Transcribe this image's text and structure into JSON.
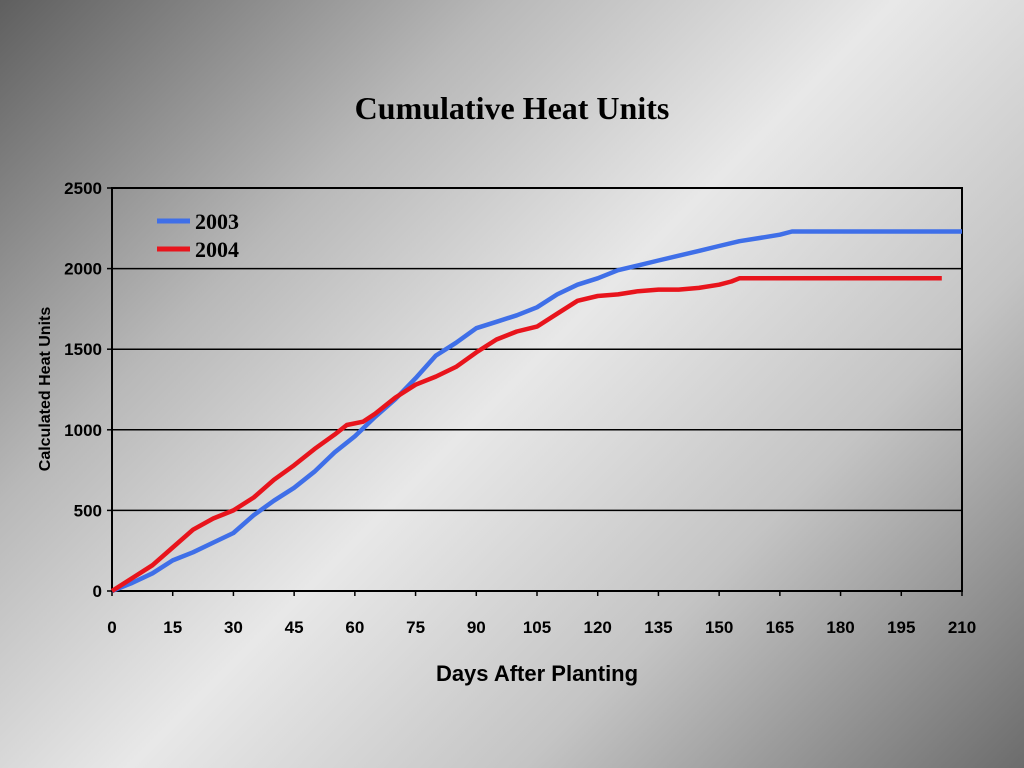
{
  "chart_data": {
    "type": "line",
    "title": "Cumulative Heat Units",
    "xlabel": "Days After Planting",
    "ylabel": "Calculated Heat Units",
    "xlim": [
      0,
      210
    ],
    "ylim": [
      0,
      2500
    ],
    "xticks": [
      0,
      15,
      30,
      45,
      60,
      75,
      90,
      105,
      120,
      135,
      150,
      165,
      180,
      195,
      210
    ],
    "yticks": [
      0,
      500,
      1000,
      1500,
      2000,
      2500
    ],
    "grid": "horizontal",
    "legend": "top-left",
    "series": [
      {
        "name": "2003",
        "color": "#3f6fe8",
        "x": [
          0,
          5,
          10,
          15,
          20,
          25,
          30,
          35,
          40,
          45,
          50,
          55,
          60,
          65,
          70,
          75,
          80,
          85,
          90,
          95,
          100,
          105,
          110,
          115,
          120,
          125,
          130,
          135,
          140,
          145,
          150,
          155,
          160,
          165,
          168,
          180,
          195,
          210
        ],
        "y": [
          0,
          50,
          110,
          190,
          240,
          300,
          360,
          470,
          560,
          640,
          740,
          860,
          960,
          1080,
          1190,
          1320,
          1460,
          1540,
          1630,
          1670,
          1710,
          1760,
          1840,
          1900,
          1940,
          1990,
          2020,
          2050,
          2080,
          2110,
          2140,
          2170,
          2190,
          2210,
          2230,
          2230,
          2230,
          2230
        ]
      },
      {
        "name": "2004",
        "color": "#e8141c",
        "x": [
          0,
          5,
          10,
          15,
          20,
          25,
          30,
          35,
          40,
          45,
          50,
          55,
          58,
          62,
          65,
          70,
          75,
          80,
          85,
          90,
          95,
          100,
          105,
          110,
          115,
          120,
          125,
          130,
          135,
          140,
          145,
          150,
          153,
          155,
          165,
          180,
          195,
          205
        ],
        "y": [
          0,
          80,
          160,
          270,
          380,
          450,
          500,
          580,
          690,
          780,
          880,
          970,
          1030,
          1050,
          1100,
          1200,
          1280,
          1330,
          1390,
          1480,
          1560,
          1610,
          1640,
          1720,
          1800,
          1830,
          1840,
          1860,
          1870,
          1870,
          1880,
          1900,
          1920,
          1940,
          1940,
          1940,
          1940,
          1940
        ]
      }
    ]
  }
}
